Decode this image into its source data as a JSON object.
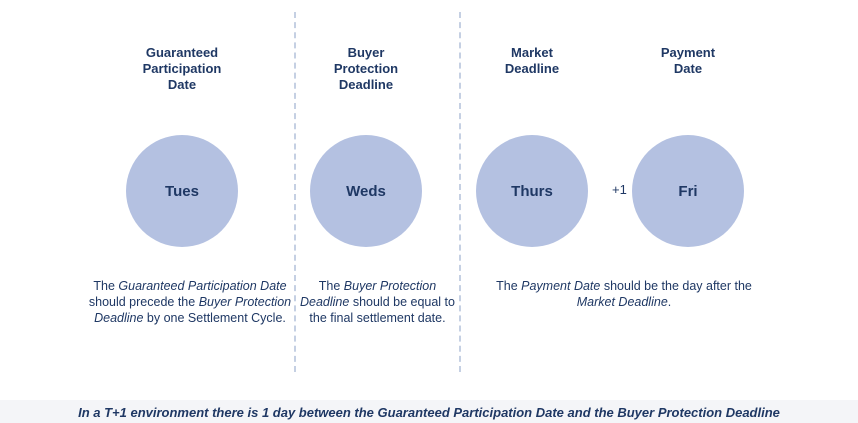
{
  "columns": [
    {
      "heading": [
        "Guaranteed",
        "Participation",
        "Date"
      ],
      "circle": "Tues"
    },
    {
      "heading": [
        "Buyer",
        "Protection",
        "Deadline"
      ],
      "circle": "Weds"
    },
    {
      "heading": [
        "Market",
        "Deadline"
      ],
      "circle": "Thurs"
    },
    {
      "heading": [
        "Payment",
        "Date"
      ],
      "circle": "Fri"
    }
  ],
  "connector": "+1",
  "descriptions": [
    {
      "segments": [
        {
          "text": "The ",
          "italic": false
        },
        {
          "text": "Guaranteed Participation Date",
          "italic": true
        },
        {
          "text": " should precede the ",
          "italic": false
        },
        {
          "text": "Buyer Protection Deadline",
          "italic": true
        },
        {
          "text": " by one Settlement Cycle.",
          "italic": false
        }
      ]
    },
    {
      "segments": [
        {
          "text": "The ",
          "italic": false
        },
        {
          "text": "Buyer Protection Deadline",
          "italic": true
        },
        {
          "text": " should be equal to the final settlement date.",
          "italic": false
        }
      ]
    },
    {
      "segments": [
        {
          "text": "The ",
          "italic": false
        },
        {
          "text": "Payment Date",
          "italic": true
        },
        {
          "text": " should be the day after the ",
          "italic": false
        },
        {
          "text": "Market Deadline",
          "italic": true
        },
        {
          "text": ".",
          "italic": false
        }
      ]
    }
  ],
  "footer": "In a T+1 environment there is 1 day between the Guaranteed Participation Date and the Buyer Protection Deadline"
}
